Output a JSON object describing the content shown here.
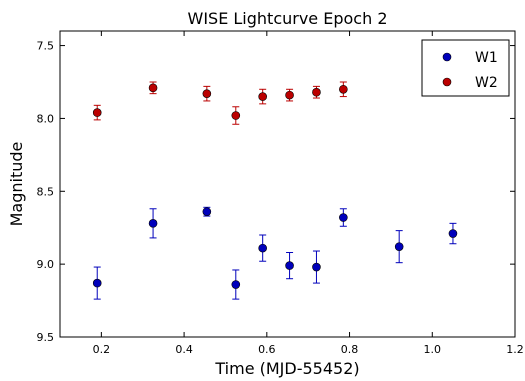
{
  "chart_data": {
    "type": "scatter",
    "title": "WISE Lightcurve Epoch 2",
    "xlabel": "Time (MJD-55452)",
    "ylabel": "Magnitude",
    "xlim": [
      0.1,
      1.2
    ],
    "ylim": [
      9.5,
      7.4
    ],
    "y_inverted": true,
    "x_ticks": [
      0.2,
      0.4,
      0.6,
      0.8,
      1.0,
      1.2
    ],
    "x_tick_labels": [
      "0.2",
      "0.4",
      "0.6",
      "0.8",
      "1.0",
      "1.2"
    ],
    "y_ticks": [
      7.5,
      8.0,
      8.5,
      9.0,
      9.5
    ],
    "y_tick_labels": [
      "7.5",
      "8.0",
      "8.5",
      "9.0",
      "9.5"
    ],
    "grid": false,
    "legend_position": "top-right",
    "error_bars": true,
    "series": [
      {
        "name": "W1",
        "color": "#0000bb",
        "points": [
          {
            "x": 0.19,
            "y": 9.13,
            "err": 0.11
          },
          {
            "x": 0.325,
            "y": 8.72,
            "err": 0.1
          },
          {
            "x": 0.455,
            "y": 8.64,
            "err": 0.03
          },
          {
            "x": 0.525,
            "y": 9.14,
            "err": 0.1
          },
          {
            "x": 0.59,
            "y": 8.89,
            "err": 0.09
          },
          {
            "x": 0.655,
            "y": 9.01,
            "err": 0.09
          },
          {
            "x": 0.72,
            "y": 9.02,
            "err": 0.11
          },
          {
            "x": 0.785,
            "y": 8.68,
            "err": 0.06
          },
          {
            "x": 0.92,
            "y": 8.88,
            "err": 0.11
          },
          {
            "x": 1.05,
            "y": 8.79,
            "err": 0.07
          }
        ]
      },
      {
        "name": "W2",
        "color": "#bb0000",
        "points": [
          {
            "x": 0.19,
            "y": 7.96,
            "err": 0.05
          },
          {
            "x": 0.325,
            "y": 7.79,
            "err": 0.04
          },
          {
            "x": 0.455,
            "y": 7.83,
            "err": 0.05
          },
          {
            "x": 0.525,
            "y": 7.98,
            "err": 0.06
          },
          {
            "x": 0.59,
            "y": 7.85,
            "err": 0.05
          },
          {
            "x": 0.655,
            "y": 7.84,
            "err": 0.04
          },
          {
            "x": 0.72,
            "y": 7.82,
            "err": 0.04
          },
          {
            "x": 0.785,
            "y": 7.8,
            "err": 0.05
          }
        ]
      }
    ]
  }
}
